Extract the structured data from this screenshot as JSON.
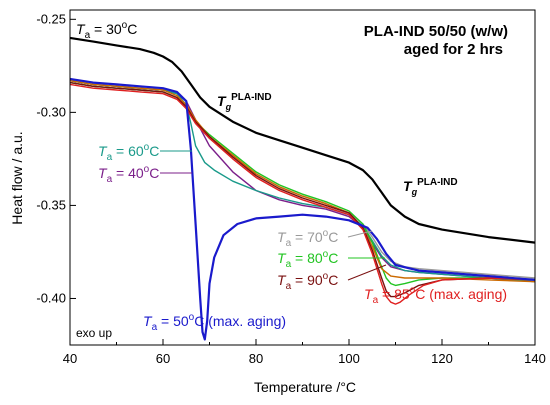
{
  "chart_data": {
    "type": "line",
    "title": "PLA-IND 50/50 (w/w)",
    "subtitle": "aged for 2 hrs",
    "xlabel": "Temperature /",
    "xlabel_unit": "°C",
    "ylabel": "Heat flow / a.u.",
    "xlim": [
      40,
      140
    ],
    "ylim": [
      -0.425,
      -0.245
    ],
    "x_ticks": [
      40,
      60,
      80,
      100,
      120,
      140
    ],
    "y_ticks": [
      -0.25,
      -0.3,
      -0.35,
      -0.4
    ],
    "x_tick_labels": [
      "40",
      "60",
      "80",
      "100",
      "120",
      "140"
    ],
    "y_tick_labels": [
      "-0.25",
      "-0.30",
      "-0.35",
      "-0.40"
    ],
    "grid": false,
    "corner_note": "exo up",
    "tg_labels": [
      {
        "main": "T",
        "sub": "g",
        "sup": "PLA-IND"
      },
      {
        "main": "T",
        "sub": "g",
        "sup": "PLA-IND"
      }
    ],
    "series": [
      {
        "color": "#000000",
        "label_main": "T",
        "label_sub": "a",
        "label_rest": " = 30",
        "label_deg": "o",
        "label_unit": "C",
        "x": [
          40,
          45,
          50,
          55,
          58,
          60,
          62,
          64,
          66,
          68,
          70,
          75,
          80,
          85,
          90,
          95,
          100,
          103,
          105,
          107,
          109,
          112,
          115,
          120,
          130,
          140
        ],
        "y": [
          -0.26,
          -0.262,
          -0.264,
          -0.266,
          -0.268,
          -0.27,
          -0.273,
          -0.278,
          -0.285,
          -0.292,
          -0.297,
          -0.305,
          -0.311,
          -0.315,
          -0.319,
          -0.323,
          -0.327,
          -0.331,
          -0.336,
          -0.343,
          -0.35,
          -0.356,
          -0.36,
          -0.363,
          -0.367,
          -0.37
        ]
      },
      {
        "color": "#1a1acc",
        "label_main": "T",
        "label_sub": "a",
        "label_rest": " = 50",
        "label_deg": "o",
        "label_unit": "C (max. aging)",
        "x": [
          40,
          45,
          50,
          55,
          60,
          63,
          65,
          66,
          67,
          68,
          68.5,
          69,
          69.5,
          70,
          71,
          73,
          76,
          80,
          85,
          90,
          95,
          100,
          104,
          106,
          108,
          110,
          115,
          120,
          130,
          140
        ],
        "y": [
          -0.282,
          -0.284,
          -0.285,
          -0.286,
          -0.287,
          -0.289,
          -0.294,
          -0.32,
          -0.36,
          -0.4,
          -0.418,
          -0.422,
          -0.412,
          -0.392,
          -0.378,
          -0.366,
          -0.36,
          -0.357,
          -0.356,
          -0.355,
          -0.356,
          -0.358,
          -0.362,
          -0.368,
          -0.376,
          -0.382,
          -0.385,
          -0.386,
          -0.388,
          -0.39
        ]
      },
      {
        "color": "#7b1f8a",
        "label_main": "T",
        "label_sub": "a",
        "label_rest": " = 40",
        "label_deg": "o",
        "label_unit": "C",
        "x": [
          40,
          45,
          50,
          55,
          60,
          63,
          65,
          67,
          70,
          75,
          80,
          85,
          90,
          95,
          100,
          103,
          105,
          107,
          109,
          112,
          115,
          120,
          130,
          140
        ],
        "y": [
          -0.283,
          -0.285,
          -0.286,
          -0.287,
          -0.288,
          -0.29,
          -0.294,
          -0.304,
          -0.318,
          -0.332,
          -0.342,
          -0.347,
          -0.35,
          -0.352,
          -0.356,
          -0.362,
          -0.37,
          -0.378,
          -0.383,
          -0.385,
          -0.386,
          -0.387,
          -0.389,
          -0.391
        ]
      },
      {
        "color": "#1a9a8a",
        "label_main": "T",
        "label_sub": "a",
        "label_rest": " = 60",
        "label_deg": "o",
        "label_unit": "C",
        "x": [
          40,
          45,
          50,
          55,
          60,
          63,
          65,
          66,
          67,
          69,
          71,
          75,
          80,
          85,
          90,
          95,
          100,
          103,
          105,
          107,
          109,
          112,
          115,
          120,
          130,
          140
        ],
        "y": [
          -0.283,
          -0.285,
          -0.286,
          -0.287,
          -0.288,
          -0.29,
          -0.296,
          -0.306,
          -0.318,
          -0.327,
          -0.331,
          -0.337,
          -0.342,
          -0.346,
          -0.349,
          -0.351,
          -0.355,
          -0.361,
          -0.369,
          -0.377,
          -0.382,
          -0.385,
          -0.386,
          -0.387,
          -0.389,
          -0.391
        ]
      },
      {
        "color": "#999999",
        "label_main": "T",
        "label_sub": "a",
        "label_rest": " = 70",
        "label_deg": "o",
        "label_unit": "C",
        "x": [
          40,
          45,
          50,
          55,
          60,
          63,
          65,
          67,
          70,
          75,
          80,
          85,
          90,
          95,
          100,
          103,
          105,
          107,
          109,
          112,
          115,
          120,
          130,
          140
        ],
        "y": [
          -0.284,
          -0.286,
          -0.287,
          -0.288,
          -0.289,
          -0.292,
          -0.298,
          -0.306,
          -0.314,
          -0.324,
          -0.333,
          -0.34,
          -0.345,
          -0.349,
          -0.354,
          -0.36,
          -0.367,
          -0.375,
          -0.38,
          -0.383,
          -0.384,
          -0.385,
          -0.387,
          -0.389
        ]
      },
      {
        "color": "#22c422",
        "label_main": "T",
        "label_sub": "a",
        "label_rest": " = 80",
        "label_deg": "o",
        "label_unit": "C",
        "x": [
          40,
          45,
          50,
          55,
          60,
          63,
          65,
          67,
          70,
          75,
          80,
          85,
          90,
          95,
          100,
          103,
          105,
          107,
          108,
          109,
          110,
          112,
          115,
          120,
          130,
          140
        ],
        "y": [
          -0.284,
          -0.286,
          -0.287,
          -0.288,
          -0.289,
          -0.292,
          -0.297,
          -0.305,
          -0.312,
          -0.322,
          -0.332,
          -0.339,
          -0.344,
          -0.348,
          -0.353,
          -0.36,
          -0.37,
          -0.383,
          -0.389,
          -0.392,
          -0.393,
          -0.392,
          -0.39,
          -0.389,
          -0.389,
          -0.39
        ]
      },
      {
        "color": "#cc6a00",
        "label_main": "",
        "label_sub": "",
        "label_rest": "",
        "label_deg": "",
        "label_unit": "",
        "x": [
          40,
          45,
          50,
          55,
          60,
          63,
          65,
          67,
          70,
          75,
          80,
          85,
          90,
          95,
          100,
          103,
          105,
          107,
          109,
          112,
          115,
          120,
          130,
          140
        ],
        "y": [
          -0.283,
          -0.285,
          -0.286,
          -0.287,
          -0.288,
          -0.291,
          -0.296,
          -0.304,
          -0.313,
          -0.323,
          -0.333,
          -0.34,
          -0.345,
          -0.349,
          -0.354,
          -0.362,
          -0.372,
          -0.384,
          -0.388,
          -0.389,
          -0.389,
          -0.389,
          -0.39,
          -0.391
        ]
      },
      {
        "color": "#7a1010",
        "label_main": "T",
        "label_sub": "a",
        "label_rest": " = 90",
        "label_deg": "o",
        "label_unit": "C",
        "x": [
          40,
          45,
          50,
          55,
          60,
          63,
          65,
          67,
          70,
          75,
          80,
          85,
          90,
          95,
          100,
          103,
          105,
          107,
          108,
          109,
          110,
          112,
          115,
          120,
          130,
          140
        ],
        "y": [
          -0.284,
          -0.286,
          -0.287,
          -0.288,
          -0.289,
          -0.292,
          -0.297,
          -0.305,
          -0.313,
          -0.324,
          -0.334,
          -0.341,
          -0.346,
          -0.35,
          -0.354,
          -0.362,
          -0.374,
          -0.389,
          -0.396,
          -0.399,
          -0.399,
          -0.397,
          -0.393,
          -0.39,
          -0.389,
          -0.39
        ]
      },
      {
        "color": "#e02020",
        "label_main": "T",
        "label_sub": "a",
        "label_rest": " = 85",
        "label_deg": "o",
        "label_unit": "C (max. aging)",
        "x": [
          40,
          45,
          50,
          55,
          60,
          63,
          65,
          67,
          70,
          75,
          80,
          85,
          90,
          95,
          100,
          103,
          105,
          107,
          108,
          109,
          110,
          111,
          113,
          116,
          120,
          130,
          140
        ],
        "y": [
          -0.285,
          -0.287,
          -0.288,
          -0.289,
          -0.29,
          -0.293,
          -0.298,
          -0.306,
          -0.314,
          -0.325,
          -0.335,
          -0.342,
          -0.347,
          -0.351,
          -0.355,
          -0.363,
          -0.376,
          -0.392,
          -0.399,
          -0.402,
          -0.403,
          -0.402,
          -0.398,
          -0.393,
          -0.39,
          -0.389,
          -0.39
        ]
      }
    ]
  }
}
